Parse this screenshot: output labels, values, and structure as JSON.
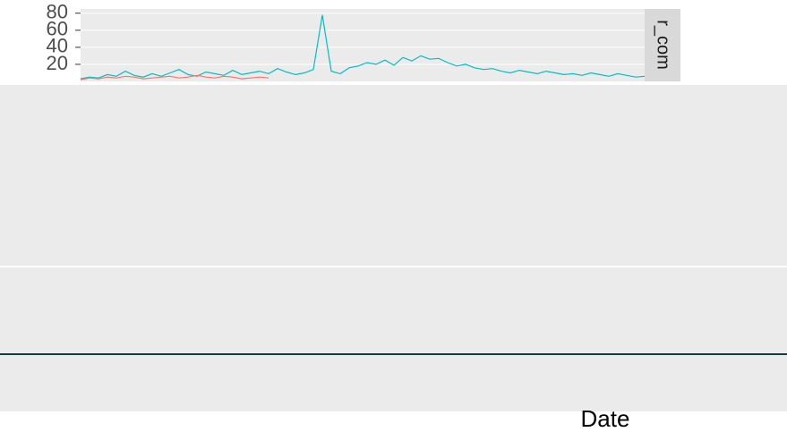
{
  "chart_data": {
    "type": "line",
    "strip": "r_com",
    "x_label": "Date",
    "ylim": [
      0,
      85
    ],
    "yticks": [
      20,
      40,
      60,
      80
    ],
    "grid": true,
    "series": [
      {
        "color": "#00BFC4",
        "values": [
          3,
          5,
          4,
          8,
          6,
          12,
          7,
          5,
          9,
          6,
          10,
          14,
          8,
          6,
          11,
          9,
          7,
          13,
          8,
          10,
          12,
          9,
          15,
          11,
          8,
          10,
          14,
          78,
          12,
          9,
          16,
          18,
          22,
          20,
          25,
          19,
          28,
          24,
          30,
          26,
          27,
          22,
          18,
          20,
          16,
          14,
          15,
          12,
          10,
          13,
          11,
          9,
          12,
          10,
          8,
          9,
          7,
          10,
          8,
          6,
          9,
          7,
          5,
          6
        ]
      },
      {
        "color": "#F8766D",
        "values": [
          2,
          4,
          3,
          5,
          4,
          6,
          5,
          3,
          4,
          5,
          6,
          4,
          5,
          7,
          5,
          4,
          6,
          5,
          3,
          4,
          5,
          4,
          null,
          null,
          null,
          null,
          null,
          null,
          null,
          null,
          null,
          null,
          null,
          null,
          null,
          null,
          null,
          null,
          null,
          null,
          null,
          null,
          null,
          null,
          null,
          null,
          null,
          null,
          null,
          null,
          null,
          null,
          null,
          null,
          null,
          null,
          null,
          null,
          null,
          null,
          null,
          null,
          null,
          null
        ]
      }
    ]
  }
}
